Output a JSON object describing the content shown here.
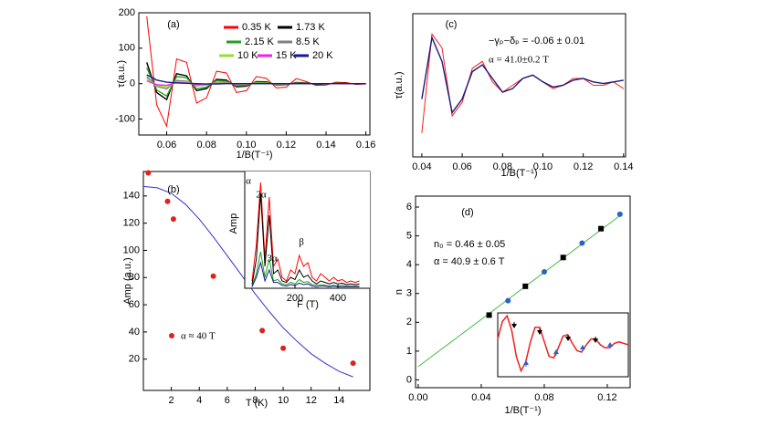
{
  "chart_data": [
    {
      "type": "line",
      "label": "(a)",
      "xlabel": "1/B(T⁻¹)",
      "ylabel": "τ(a.u.)",
      "xlim": [
        0.046,
        0.162
      ],
      "ylim": [
        -145,
        200
      ],
      "xticks": [
        0.06,
        0.08,
        {
          "value": 0.1,
          "label": "0.10"
        },
        0.12,
        0.14,
        0.16
      ],
      "yticks": [
        -100,
        0,
        100,
        200
      ],
      "x": [
        0.05,
        0.055,
        0.06,
        0.065,
        0.07,
        0.075,
        0.08,
        0.085,
        0.09,
        0.095,
        0.1,
        0.105,
        0.11,
        0.115,
        0.12,
        0.125,
        0.13,
        0.135,
        0.14,
        0.145,
        0.15,
        0.155,
        0.16
      ],
      "series": [
        {
          "name": "0.35 K",
          "color": "#ff0000",
          "values": [
            190,
            -60,
            -120,
            70,
            60,
            -55,
            -40,
            35,
            30,
            -25,
            -20,
            20,
            15,
            -12,
            -10,
            14,
            6,
            -5,
            -4,
            4,
            3,
            -2,
            -1
          ]
        },
        {
          "name": "1.73 K",
          "color": "#000000",
          "values": [
            60,
            -25,
            -45,
            28,
            22,
            -20,
            -14,
            12,
            10,
            -9,
            -7,
            6,
            5,
            -4,
            -3,
            3,
            2,
            -2,
            -1,
            1,
            1,
            -1,
            0
          ]
        },
        {
          "name": "2.15 K",
          "color": "#22a022",
          "values": [
            45,
            -18,
            -35,
            20,
            17,
            -15,
            -10,
            9,
            7,
            -6,
            -5,
            4,
            3,
            -3,
            -2,
            2,
            1,
            -1,
            -1,
            1,
            0,
            0,
            0
          ]
        },
        {
          "name": "8.5 K",
          "color": "#808080",
          "values": [
            20,
            -8,
            -15,
            9,
            7,
            -6,
            -4,
            4,
            3,
            -2,
            -2,
            2,
            1,
            -1,
            -1,
            1,
            0,
            0,
            0,
            0,
            0,
            0,
            0
          ]
        },
        {
          "name": "10 K",
          "color": "#99dd33",
          "values": [
            14,
            -6,
            -10,
            6,
            5,
            -4,
            -3,
            3,
            2,
            -2,
            -1,
            1,
            1,
            -1,
            0,
            0,
            0,
            0,
            0,
            0,
            0,
            0,
            0
          ]
        },
        {
          "name": "15 K",
          "color": "#ee22ee",
          "values": [
            8,
            -3,
            -5,
            3,
            2,
            -2,
            -1,
            1,
            1,
            -1,
            0,
            0,
            0,
            0,
            0,
            0,
            0,
            0,
            0,
            0,
            0,
            0,
            0
          ]
        },
        {
          "name": "20 K",
          "color": "#1a1a8c",
          "values": [
            25,
            10,
            4,
            2,
            1,
            0,
            -1,
            -1,
            0,
            0,
            0,
            0,
            0,
            0,
            0,
            0,
            0,
            0,
            0,
            0,
            0,
            0,
            0
          ]
        }
      ]
    },
    {
      "type": "scatter",
      "label": "(b)",
      "xlabel": "T (K)",
      "ylabel": "Amp (a.u.)",
      "xlim": [
        0,
        16.2
      ],
      "ylim": [
        -3,
        158
      ],
      "xticks": [
        2,
        4,
        6,
        8,
        10,
        12,
        14
      ],
      "yticks": [
        20,
        40,
        60,
        80,
        100,
        120,
        140
      ],
      "series": [
        {
          "name": "α ≈ 40 T",
          "color": "#e02020",
          "x": [
            0.35,
            1.73,
            2.15,
            5,
            8.5,
            10,
            15
          ],
          "values": [
            157,
            136,
            123,
            81,
            41,
            28,
            17
          ]
        }
      ],
      "fit": {
        "color": "#3333cc",
        "x": [
          0,
          1,
          2,
          3,
          4,
          5,
          6,
          7,
          8,
          9,
          10,
          11,
          12,
          13,
          14,
          15
        ],
        "values": [
          147,
          146,
          142,
          134,
          123,
          110,
          96,
          82,
          68,
          55,
          43,
          33,
          24,
          17,
          11,
          7
        ]
      },
      "inset": {
        "xlabel": "F (T)",
        "ylabel": "Amp",
        "xlim": [
          -34,
          549
        ],
        "ylim": [
          0,
          160
        ],
        "xticks": [
          200,
          400
        ],
        "annotations": [
          "α",
          "2α",
          "3α",
          "β"
        ],
        "x": [
          0,
          20,
          40,
          60,
          80,
          100,
          120,
          140,
          160,
          180,
          200,
          220,
          240,
          260,
          280,
          300,
          320,
          340,
          360,
          380,
          400,
          420,
          440,
          460,
          480,
          500
        ],
        "series": [
          {
            "color": "#ff0000",
            "values": [
              10,
              60,
              145,
              40,
              125,
              30,
              40,
              15,
              10,
              25,
              20,
              45,
              30,
              35,
              15,
              10,
              20,
              15,
              10,
              15,
              10,
              12,
              8,
              10,
              8,
              10
            ]
          },
          {
            "color": "#000000",
            "values": [
              5,
              40,
              130,
              30,
              100,
              20,
              25,
              10,
              8,
              15,
              12,
              25,
              15,
              18,
              10,
              6,
              10,
              8,
              6,
              8,
              6,
              7,
              5,
              6,
              5,
              6
            ]
          },
          {
            "color": "#22a022",
            "values": [
              3,
              20,
              50,
              15,
              40,
              10,
              12,
              6,
              5,
              8,
              6,
              12,
              8,
              9,
              5,
              4,
              5,
              4,
              3,
              4,
              3,
              4,
              3,
              3,
              3,
              3
            ]
          },
          {
            "color": "#1a1a8c",
            "values": [
              2,
              15,
              35,
              10,
              25,
              8,
              8,
              4,
              3,
              5,
              4,
              7,
              5,
              6,
              3,
              2,
              3,
              3,
              2,
              3,
              2,
              2,
              2,
              2,
              2,
              2
            ]
          }
        ]
      }
    },
    {
      "type": "line",
      "label": "(c)",
      "xlabel": "1/B(T⁻¹)",
      "ylabel": "τ(a.u.)",
      "annotations": [
        "−γₚ−δₚ = -0.06 ± 0.01",
        "α = 41.0±0.2 T"
      ],
      "xlim": [
        0.0355,
        0.141
      ],
      "ylim": [
        -22,
        20
      ],
      "xticks": [
        0.04,
        0.06,
        0.08,
        {
          "value": 0.1,
          "label": "0.10"
        },
        0.12,
        0.14
      ],
      "x": [
        0.04,
        0.045,
        0.05,
        0.055,
        0.06,
        0.065,
        0.07,
        0.075,
        0.08,
        0.085,
        0.09,
        0.095,
        0.1,
        0.105,
        0.11,
        0.115,
        0.12,
        0.125,
        0.13,
        0.135,
        0.14
      ],
      "series": [
        {
          "color": "#ff2020",
          "values": [
            -15,
            14,
            10,
            -10,
            -6,
            4,
            6,
            0,
            -3,
            -1,
            1,
            2,
            0,
            -2,
            -1,
            1,
            1,
            -1,
            -1,
            0,
            -2
          ]
        },
        {
          "color": "#1a1a7a",
          "values": [
            -5,
            13,
            6,
            -9,
            -5,
            3,
            5,
            1,
            -3,
            -2,
            1,
            2,
            0,
            -1.5,
            -1,
            0.5,
            1,
            0,
            -0.5,
            0,
            0.5
          ]
        }
      ]
    },
    {
      "type": "scatter",
      "label": "(d)",
      "xlabel": "1/B(T⁻¹)",
      "ylabel": "n",
      "annotations": [
        "n₀ = 0.46 ± 0.05",
        "α  = 40.9 ± 0.6 T"
      ],
      "xlim": [
        -0.0017,
        0.1345
      ],
      "ylim": [
        -0.27,
        6.38
      ],
      "xticks": [
        {
          "value": 0,
          "label": "0.00"
        },
        0.04,
        0.08,
        0.12
      ],
      "yticks": [
        0,
        1,
        2,
        3,
        4,
        5,
        6
      ],
      "series": [
        {
          "color": "#000000",
          "marker": "square",
          "x": [
            0.045,
            0.068,
            0.092,
            0.116
          ],
          "values": [
            2.25,
            3.25,
            4.25,
            5.25
          ]
        },
        {
          "color": "#2a62c8",
          "marker": "circle",
          "x": [
            0.057,
            0.08,
            0.104,
            0.128
          ],
          "values": [
            2.75,
            3.75,
            4.75,
            5.75
          ]
        }
      ],
      "fit": {
        "color": "#44bb44",
        "x": [
          0,
          0.13
        ],
        "values": [
          0.46,
          5.78
        ]
      },
      "inset": {
        "color": "#ee2020",
        "xlim": [
          0,
          28
        ],
        "ylim": [
          -1.1,
          1.1
        ],
        "x": [
          0,
          1,
          2,
          3,
          4,
          5,
          6,
          7,
          8,
          9,
          10,
          11,
          12,
          13,
          14,
          15,
          16,
          17,
          18,
          19,
          20,
          21,
          22,
          23,
          24,
          25,
          26,
          27,
          28
        ],
        "values": [
          0.2,
          0.8,
          1.0,
          0.5,
          -0.4,
          -0.9,
          -0.6,
          0.1,
          0.6,
          0.6,
          0.1,
          -0.4,
          -0.45,
          -0.1,
          0.3,
          0.35,
          0.05,
          -0.2,
          -0.25,
          0,
          0.2,
          0.2,
          0,
          -0.1,
          -0.1,
          0.05,
          0.1,
          0.05,
          0
        ]
      }
    }
  ]
}
